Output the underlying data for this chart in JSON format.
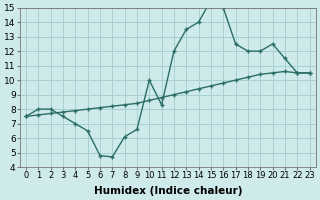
{
  "line1_x": [
    0,
    1,
    2,
    3,
    4,
    5,
    6,
    7,
    8,
    9,
    10,
    11,
    12,
    13,
    14,
    15,
    16,
    17,
    18,
    19,
    20,
    21,
    22,
    23
  ],
  "line1_y": [
    7.5,
    8.0,
    8.0,
    7.5,
    7.0,
    6.5,
    4.8,
    4.7,
    6.1,
    6.6,
    10.0,
    8.3,
    12.0,
    13.5,
    14.0,
    15.5,
    15.0,
    12.5,
    12.0,
    12.0,
    12.5,
    11.5,
    10.5,
    10.5
  ],
  "line2_x": [
    0,
    1,
    2,
    3,
    4,
    5,
    6,
    7,
    8,
    9,
    10,
    11,
    12,
    13,
    14,
    15,
    16,
    17,
    18,
    19,
    20,
    21,
    22,
    23
  ],
  "line2_y": [
    7.5,
    7.6,
    7.7,
    7.8,
    7.9,
    8.0,
    8.1,
    8.2,
    8.3,
    8.4,
    8.6,
    8.8,
    9.0,
    9.2,
    9.4,
    9.6,
    9.8,
    10.0,
    10.2,
    10.4,
    10.5,
    10.6,
    10.5,
    10.5
  ],
  "color": "#2a6e65",
  "bg_color": "#ceeaea",
  "grid_color": "#a8d0d0",
  "xlabel": "Humidex (Indice chaleur)",
  "ylim": [
    4,
    15
  ],
  "xlim": [
    -0.5,
    23.5
  ],
  "yticks": [
    4,
    5,
    6,
    7,
    8,
    9,
    10,
    11,
    12,
    13,
    14,
    15
  ],
  "xticks": [
    0,
    1,
    2,
    3,
    4,
    5,
    6,
    7,
    8,
    9,
    10,
    11,
    12,
    13,
    14,
    15,
    16,
    17,
    18,
    19,
    20,
    21,
    22,
    23
  ],
  "xtick_labels": [
    "0",
    "1",
    "2",
    "3",
    "4",
    "5",
    "6",
    "7",
    "8",
    "9",
    "10",
    "11",
    "12",
    "13",
    "14",
    "15",
    "16",
    "17",
    "18",
    "19",
    "20",
    "21",
    "22",
    "23"
  ],
  "markersize": 3.5,
  "linewidth": 1.0,
  "font_size": 6.5,
  "xlabel_fontsize": 7.5
}
